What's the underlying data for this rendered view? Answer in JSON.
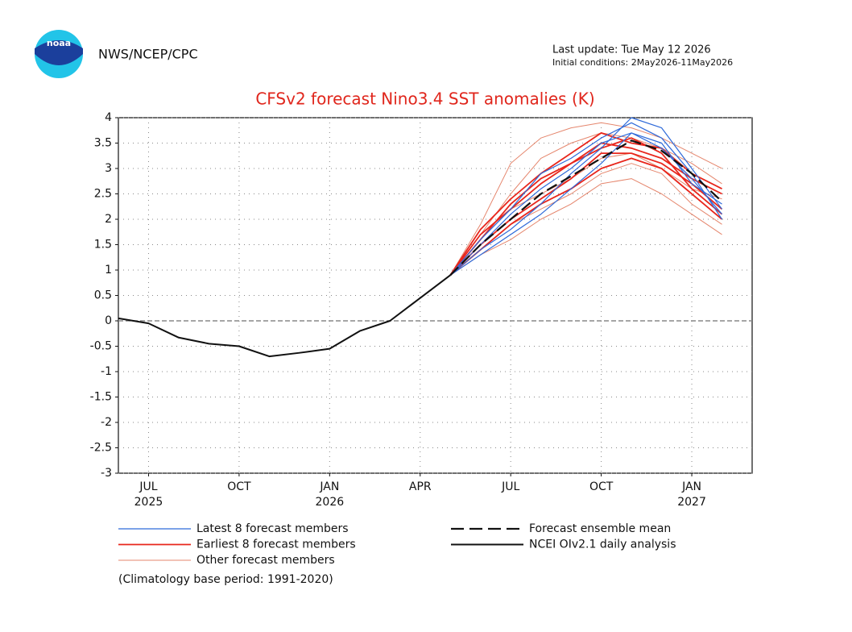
{
  "header": {
    "logo_text": "noaa",
    "agency": "NWS/NCEP/CPC",
    "last_update": "Last update: Tue May 12 2026",
    "initial_conditions": "Initial conditions: 2May2026-11May2026"
  },
  "chart_data": {
    "type": "line",
    "title": "CFSv2 forecast Nino3.4 SST anomalies (K)",
    "xlim": [
      "2025-06",
      "2027-03"
    ],
    "xticks": [
      {
        "value": "2025-07",
        "label": "JUL"
      },
      {
        "value": "2025-10",
        "label": "OCT"
      },
      {
        "value": "2026-01",
        "label": "JAN"
      },
      {
        "value": "2026-04",
        "label": "APR"
      },
      {
        "value": "2026-07",
        "label": "JUL"
      },
      {
        "value": "2026-10",
        "label": "OCT"
      },
      {
        "value": "2027-01",
        "label": "JAN"
      }
    ],
    "xtick_years": [
      {
        "value": "2025-07",
        "label": "2025"
      },
      {
        "value": "2026-01",
        "label": "2026"
      },
      {
        "value": "2027-01",
        "label": "2027"
      }
    ],
    "ylim": [
      -3,
      4
    ],
    "yticks": [
      4,
      3.5,
      3,
      2.5,
      2,
      1.5,
      1,
      0.5,
      0,
      -0.5,
      -1,
      -1.5,
      -2,
      -2.5,
      -3
    ],
    "grid": true,
    "series": [
      {
        "name": "Latest 8 forecast members",
        "color": "#2f6ad9",
        "x": [
          "2026-05",
          "2026-06",
          "2026-07",
          "2026-08",
          "2026-09",
          "2026-10",
          "2026-11",
          "2026-12",
          "2027-01",
          "2027-02"
        ],
        "members": [
          [
            0.9,
            1.4,
            1.8,
            2.3,
            2.9,
            3.4,
            4.0,
            3.8,
            3.0,
            2.2
          ],
          [
            0.9,
            1.6,
            2.2,
            2.9,
            3.2,
            3.6,
            3.9,
            3.6,
            2.9,
            2.0
          ],
          [
            0.9,
            1.3,
            1.7,
            2.1,
            2.6,
            3.1,
            3.7,
            3.4,
            2.8,
            2.1
          ],
          [
            0.9,
            1.5,
            2.1,
            2.6,
            3.0,
            3.5,
            3.7,
            3.5,
            2.7,
            2.3
          ]
        ]
      },
      {
        "name": "Earliest 8 forecast members",
        "color": "#e8261c",
        "x": [
          "2026-05",
          "2026-06",
          "2026-07",
          "2026-08",
          "2026-09",
          "2026-10",
          "2026-11",
          "2026-12",
          "2027-01",
          "2027-02"
        ],
        "members": [
          [
            0.9,
            1.7,
            2.2,
            2.7,
            3.1,
            3.5,
            3.4,
            3.2,
            2.8,
            2.5
          ],
          [
            0.9,
            1.5,
            2.0,
            2.4,
            2.8,
            3.3,
            3.3,
            3.1,
            2.7,
            2.2
          ],
          [
            0.9,
            1.6,
            2.3,
            2.8,
            3.1,
            3.4,
            3.6,
            3.3,
            2.6,
            2.1
          ],
          [
            0.9,
            1.4,
            1.9,
            2.3,
            2.6,
            3.0,
            3.2,
            3.0,
            2.5,
            2.0
          ],
          [
            0.9,
            1.8,
            2.4,
            2.9,
            3.3,
            3.7,
            3.5,
            3.4,
            2.9,
            2.6
          ]
        ]
      },
      {
        "name": "Other forecast members",
        "color": "#e5866d",
        "x": [
          "2026-05",
          "2026-06",
          "2026-07",
          "2026-08",
          "2026-09",
          "2026-10",
          "2026-11",
          "2026-12",
          "2027-01",
          "2027-02"
        ],
        "members": [
          [
            0.9,
            1.9,
            3.1,
            3.6,
            3.8,
            3.9,
            3.8,
            3.6,
            3.3,
            3.0
          ],
          [
            0.9,
            1.3,
            1.6,
            2.0,
            2.3,
            2.7,
            2.8,
            2.5,
            2.1,
            1.7
          ],
          [
            0.9,
            1.7,
            2.5,
            3.2,
            3.5,
            3.7,
            3.6,
            3.4,
            3.1,
            2.7
          ],
          [
            0.9,
            1.4,
            1.9,
            2.2,
            2.5,
            2.9,
            3.1,
            2.9,
            2.3,
            1.9
          ],
          [
            0.9,
            1.6,
            2.2,
            2.5,
            2.8,
            3.2,
            3.3,
            3.0,
            2.6,
            2.4
          ]
        ]
      },
      {
        "name": "Forecast ensemble mean",
        "color": "#111111",
        "dashed": true,
        "x": [
          "2026-05",
          "2026-06",
          "2026-07",
          "2026-08",
          "2026-09",
          "2026-10",
          "2026-11",
          "2026-12",
          "2027-01",
          "2027-02"
        ],
        "values": [
          0.9,
          1.5,
          2.0,
          2.5,
          2.85,
          3.2,
          3.55,
          3.35,
          2.9,
          2.35
        ]
      },
      {
        "name": "NCEI OIv2.1 daily analysis",
        "color": "#111111",
        "dashed": false,
        "x": [
          "2025-06",
          "2025-07",
          "2025-08",
          "2025-09",
          "2025-10",
          "2025-11",
          "2025-12",
          "2026-01",
          "2026-02",
          "2026-03",
          "2026-04",
          "2026-05"
        ],
        "values": [
          0.05,
          -0.05,
          -0.33,
          -0.45,
          -0.5,
          -0.7,
          -0.63,
          -0.55,
          -0.2,
          0.0,
          0.45,
          0.9
        ]
      }
    ],
    "zero_line": true,
    "footnote": "(Climatology base period: 1991-2020)"
  }
}
